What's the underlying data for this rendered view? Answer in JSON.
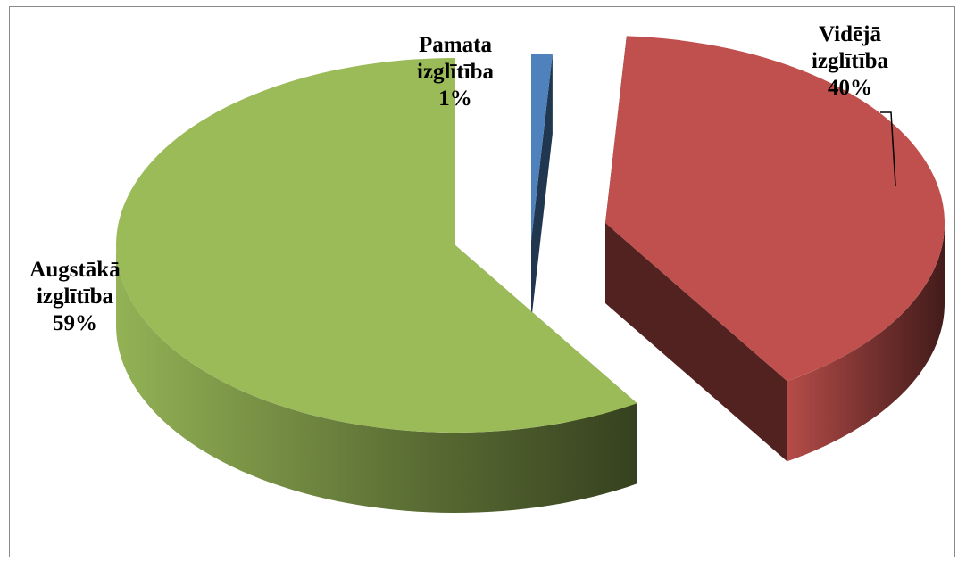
{
  "chart_data": {
    "type": "pie",
    "variant": "3d-exploded",
    "title": "",
    "slices": [
      {
        "name": "Pamata izglītība",
        "name_lines": [
          "Pamata",
          "izglītība"
        ],
        "value": 1,
        "label": "1%",
        "color": "#4f81bd"
      },
      {
        "name": "Vidējā izglītība",
        "name_lines": [
          "Vidējā",
          "izglītība"
        ],
        "value": 40,
        "label": "40%",
        "color": "#c0504d"
      },
      {
        "name": "Augstākā izglītība",
        "name_lines": [
          "Augstākā",
          "izglītība"
        ],
        "value": 59,
        "label": "59%",
        "color": "#9bbb59"
      }
    ],
    "legend": "none",
    "data_labels": "category name and percentage"
  }
}
